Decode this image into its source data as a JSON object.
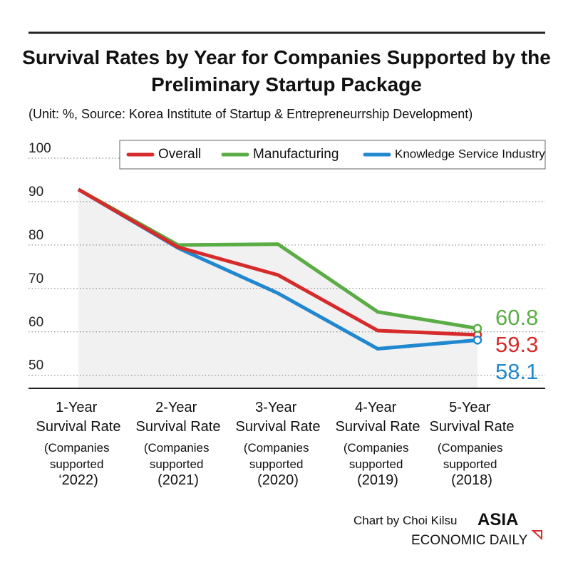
{
  "chart_data": {
    "type": "line",
    "title": "Survival Rates by Year for Companies Supported by the Preliminary Startup Package",
    "subtitle": "(Unit: %, Source: Korea Institute of Startup & Entrepreneurrship Development)",
    "categories": [
      "1-Year Survival Rate",
      "2-Year Survival Rate",
      "3-Year Survival Rate",
      "4-Year Survival Rate",
      "5-Year Survival Rate"
    ],
    "category_notes": [
      "(Companies supported ‘2022)",
      "(Companies supported (2021)",
      "(Companies supported (2020)",
      "(Companies supported (2019)",
      "(Companies supported (2018)"
    ],
    "series": [
      {
        "name": "Overall",
        "color": "#d62b2b",
        "values": [
          92.8,
          79.5,
          73.1,
          60.3,
          59.3
        ]
      },
      {
        "name": "Manufacturing",
        "color": "#5aac44",
        "values": [
          92.8,
          80.0,
          80.2,
          64.6,
          60.8
        ]
      },
      {
        "name": "Knowledge Service Industry",
        "color": "#2188cf",
        "values": [
          92.8,
          79.3,
          68.9,
          56.1,
          58.1
        ]
      }
    ],
    "ylim": [
      47,
      100
    ],
    "yticks": [
      50,
      60,
      70,
      80,
      90,
      100
    ],
    "grid": true,
    "legend": "top-right",
    "credit": "Chart by Choi Kilsu",
    "brand": [
      "ASIA",
      "ECONOMIC DAILY"
    ]
  }
}
